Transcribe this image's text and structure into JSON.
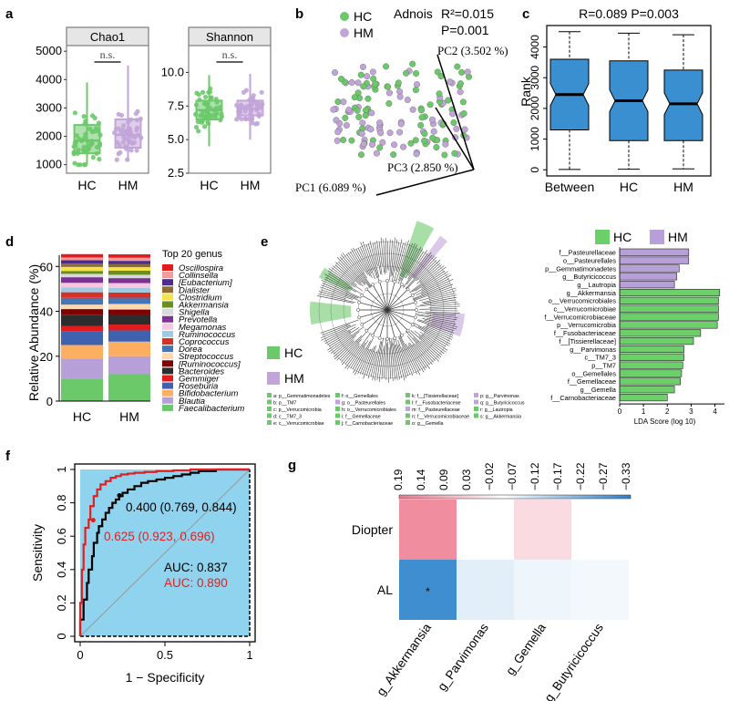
{
  "colors": {
    "hc": "#6cc96a",
    "hm": "#c2a5d8",
    "box_blue": "#3a8fd1",
    "roc_fill": "#8fd3ee",
    "roc_black": "#000000",
    "roc_red": "#e02020",
    "lda_hm": "#b79fd8",
    "lda_hc": "#6ccf6a",
    "heat_pos": "#f08ea0",
    "heat_neg": "#3f8ed0"
  },
  "panels": {
    "a": "a",
    "b": "b",
    "c": "c",
    "d": "d",
    "e": "e",
    "f": "f",
    "g": "g"
  },
  "chart_data": [
    {
      "id": "a1",
      "type": "box",
      "title": "Chao1",
      "categories": [
        "HC",
        "HM"
      ],
      "yticks": [
        1000,
        2000,
        3000,
        4000,
        5000
      ],
      "ylim": [
        700,
        5200
      ],
      "annotation": "n.s.",
      "boxes": [
        {
          "name": "HC",
          "min": 1000,
          "q1": 1400,
          "median": 1850,
          "q3": 2400,
          "max": 3900
        },
        {
          "name": "HM",
          "min": 1100,
          "q1": 1600,
          "median": 2050,
          "q3": 2600,
          "max": 4500
        }
      ]
    },
    {
      "id": "a2",
      "type": "box",
      "title": "Shannon",
      "categories": [
        "HC",
        "HM"
      ],
      "yticks": [
        2.5,
        5.0,
        7.5,
        10.0
      ],
      "yticklabels": [
        "2.5",
        "5.0",
        "7.5",
        "10.0"
      ],
      "ylim": [
        2.5,
        12
      ],
      "annotation": "n.s.",
      "boxes": [
        {
          "name": "HC",
          "min": 4.5,
          "q1": 6.5,
          "median": 7.2,
          "q3": 7.9,
          "max": 9.8
        },
        {
          "name": "HM",
          "min": 5.0,
          "q1": 6.8,
          "median": 7.3,
          "q3": 7.9,
          "max": 9.9
        }
      ]
    },
    {
      "id": "b",
      "type": "scatter",
      "legend": [
        "HC",
        "HM"
      ],
      "annotation_title": "Adnois",
      "annotation_r2": "R²=0.015",
      "annotation_p": "P=0.001",
      "axis_labels": [
        "PC1 (6.089 %)",
        "PC2 (3.502 %)",
        "PC3 (2.850 %)"
      ]
    },
    {
      "id": "c",
      "type": "box",
      "title": "R=0.089  P=0.003",
      "ylabel": "Rank",
      "categories": [
        "Between",
        "HC",
        "HM"
      ],
      "yticks": [
        0,
        1000,
        2000,
        3000,
        4000
      ],
      "ylim": [
        -200,
        4700
      ],
      "boxes": [
        {
          "name": "Between",
          "min": 10,
          "q1": 1300,
          "median": 2450,
          "q3": 3600,
          "max": 4500
        },
        {
          "name": "HC",
          "min": 20,
          "q1": 950,
          "median": 2250,
          "q3": 3550,
          "max": 4450
        },
        {
          "name": "HM",
          "min": 30,
          "q1": 950,
          "median": 2150,
          "q3": 3250,
          "max": 4400
        }
      ]
    },
    {
      "id": "d",
      "type": "bar",
      "ylabel": "Relative Abundance (%)",
      "categories": [
        "HC",
        "HM"
      ],
      "yticks": [
        0,
        20,
        40,
        60
      ],
      "ylim": [
        0,
        65
      ],
      "legend_title": "Top 20 genus",
      "series": [
        {
          "name": "Oscillospira",
          "color": "#e41a1c",
          "values": [
            1.5,
            1.5
          ]
        },
        {
          "name": "Collinsella",
          "color": "#f39c9c",
          "values": [
            1.2,
            1.4
          ]
        },
        {
          "name": "[Eubacterium]",
          "color": "#4b2c8a",
          "values": [
            1.5,
            1.5
          ]
        },
        {
          "name": "Dialister",
          "color": "#8c6d31",
          "values": [
            1.5,
            1.3
          ]
        },
        {
          "name": "Clostridium",
          "color": "#f2e44a",
          "values": [
            1.8,
            1.6
          ]
        },
        {
          "name": "Akkermansia",
          "color": "#6b8e23",
          "values": [
            1.3,
            1.8
          ]
        },
        {
          "name": "Shigella",
          "color": "#d9d9d9",
          "values": [
            1.5,
            1.5
          ]
        },
        {
          "name": "Prevotella",
          "color": "#7b3294",
          "values": [
            2.5,
            2.2
          ]
        },
        {
          "name": "Megamonas",
          "color": "#f7c6e0",
          "values": [
            2.0,
            2.2
          ]
        },
        {
          "name": "Ruminococcus",
          "color": "#9ecae1",
          "values": [
            2.2,
            2.0
          ]
        },
        {
          "name": "Coprococcus",
          "color": "#d73027",
          "values": [
            2.5,
            2.3
          ]
        },
        {
          "name": "Dorea",
          "color": "#4575b4",
          "values": [
            3.0,
            2.8
          ]
        },
        {
          "name": "Streptococcus",
          "color": "#fdd8b0",
          "values": [
            2.0,
            2.5
          ]
        },
        {
          "name": "[Ruminococcus]",
          "color": "#7f0000",
          "values": [
            2.5,
            2.2
          ]
        },
        {
          "name": "Bacteroides",
          "color": "#2c2c2c",
          "values": [
            5.0,
            4.5
          ]
        },
        {
          "name": "Gemmiger",
          "color": "#e31a1c",
          "values": [
            2.5,
            2.6
          ]
        },
        {
          "name": "Roseburia",
          "color": "#3f62b0",
          "values": [
            6.0,
            5.0
          ]
        },
        {
          "name": "Bifidobacterium",
          "color": "#fdae61",
          "values": [
            6.0,
            6.5
          ]
        },
        {
          "name": "Blautia",
          "color": "#b79fd8",
          "values": [
            9.0,
            8.0
          ]
        },
        {
          "name": "Faecalibacterium",
          "color": "#6cc96a",
          "values": [
            10.0,
            12.0
          ]
        }
      ]
    },
    {
      "id": "e",
      "type": "cladogram",
      "legend": [
        "HC",
        "HM"
      ],
      "key_rows": [
        [
          "a: p__Gemmatimonadetes",
          "f: o__Gemellales",
          "k: f__[Tissierellaceae]",
          "p: g__Parvimonas"
        ],
        [
          "b: p__TM7",
          "g: o__Pasteurellales",
          "l: f__Fusobacteriaceae",
          "q: g__Butyricicoccus"
        ],
        [
          "c: p__Verrucomicrobia",
          "h: o__Verrucomicrobiales",
          "m: f__Pasteurellaceae",
          "r: g__Lautropia"
        ],
        [
          "d: c__TM7_3",
          "i: f__Gemellaceae",
          "n: f__Verrucomicrobiaceae",
          "s: g__Akkermansia"
        ],
        [
          "e: c__Verrucomicrobiae",
          "j: f__Carnobacteriaceae",
          "o: g__Gemella",
          ""
        ]
      ]
    },
    {
      "id": "e2",
      "type": "bar",
      "orientation": "horizontal",
      "legend": [
        "HC",
        "HM"
      ],
      "xlabel": "LDA Score (log 10)",
      "xticks": [
        0,
        1,
        2,
        3,
        4
      ],
      "xlim": [
        0,
        4.4
      ],
      "categories": [
        "f__Pasteurellaceae",
        "o__Pasteurellales",
        "p__Gemmatimonadetes",
        "g__Butyricicoccus",
        "g__Lautropia",
        "g__Akkermansia",
        "o__Verrucomicrobiales",
        "c__Verrucomicrobiae",
        "f__Verrucomicrobiaceae",
        "p__Verrucomicrobia",
        "f__Fusobacteriaceae",
        "f__[Tissierellaceae]",
        "g__Parvimonas",
        "c__TM7_3",
        "p__TM7",
        "o__Gemellales",
        "f__Gemellaceae",
        "g__Gemella",
        "f__Carnobacteriaceae"
      ],
      "values": [
        2.9,
        2.9,
        2.5,
        2.4,
        2.3,
        4.2,
        4.15,
        4.15,
        4.15,
        4.1,
        3.4,
        3.1,
        2.7,
        2.7,
        2.65,
        2.6,
        2.55,
        2.3,
        2.0
      ],
      "groups": [
        "HM",
        "HM",
        "HM",
        "HM",
        "HM",
        "HC",
        "HC",
        "HC",
        "HC",
        "HC",
        "HC",
        "HC",
        "HC",
        "HC",
        "HC",
        "HC",
        "HC",
        "HC",
        "HC"
      ]
    },
    {
      "id": "f",
      "type": "line",
      "xlabel": "1 − Specificity",
      "ylabel": "Sensitivity",
      "xticks": [
        0.0,
        0.5,
        1.0
      ],
      "yticks": [
        0.0,
        0.2,
        0.4,
        0.6,
        0.8,
        1.0
      ],
      "xlim": [
        0,
        1
      ],
      "ylim": [
        0,
        1
      ],
      "annotations": [
        "0.400 (0.769, 0.844)",
        "0.625 (0.923, 0.696)",
        "AUC: 0.837",
        "AUC: 0.890"
      ],
      "series": [
        {
          "color": "#000000",
          "x": [
            0,
            0.02,
            0.04,
            0.05,
            0.07,
            0.08,
            0.1,
            0.11,
            0.13,
            0.15,
            0.17,
            0.19,
            0.21,
            0.23,
            0.25,
            0.28,
            0.32,
            0.36,
            0.4,
            0.45,
            0.5,
            0.55,
            0.6,
            0.65,
            0.7,
            0.75,
            0.8,
            0.88,
            0.95,
            1.0
          ],
          "y": [
            0,
            0.1,
            0.22,
            0.32,
            0.4,
            0.48,
            0.56,
            0.62,
            0.66,
            0.7,
            0.74,
            0.77,
            0.8,
            0.82,
            0.84,
            0.86,
            0.88,
            0.9,
            0.92,
            0.93,
            0.94,
            0.95,
            0.96,
            0.97,
            0.98,
            0.99,
            0.99,
            1.0,
            1.0,
            1.0
          ]
        },
        {
          "color": "#e02020",
          "x": [
            0,
            0.01,
            0.02,
            0.03,
            0.05,
            0.06,
            0.08,
            0.1,
            0.12,
            0.15,
            0.18,
            0.21,
            0.24,
            0.28,
            0.32,
            0.38,
            0.45,
            0.55,
            0.65,
            0.75,
            0.85,
            0.95,
            1.0
          ],
          "y": [
            0,
            0.2,
            0.4,
            0.55,
            0.65,
            0.7,
            0.78,
            0.84,
            0.88,
            0.91,
            0.93,
            0.95,
            0.96,
            0.97,
            0.975,
            0.98,
            0.985,
            0.99,
            0.995,
            1.0,
            1.0,
            1.0,
            1.0
          ]
        }
      ]
    },
    {
      "id": "g",
      "type": "heatmap",
      "rows": [
        "Diopter",
        "AL"
      ],
      "cols": [
        "g_Akkermansia",
        "g_Parvimonas",
        "g_Gemella",
        "g_Butyricicoccus"
      ],
      "values": [
        [
          0.19,
          0.0,
          0.06,
          0.0
        ],
        [
          -0.33,
          -0.05,
          -0.03,
          -0.02
        ]
      ],
      "significance": [
        [
          "",
          "",
          "",
          ""
        ],
        [
          "*",
          "",
          "",
          ""
        ]
      ],
      "colorbar_ticks": [
        "0.19",
        "0.14",
        "0.09",
        "0.03",
        "−0.02",
        "−0.07",
        "−0.12",
        "−0.17",
        "−0.22",
        "−0.27",
        "−0.33"
      ]
    }
  ]
}
